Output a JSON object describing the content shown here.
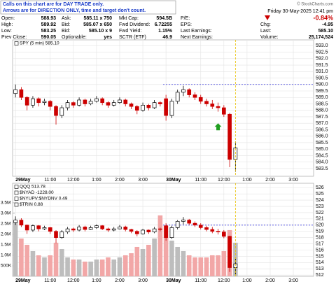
{
  "header": {
    "notice": [
      "Calls on this chart are for DAY TRADE only.",
      "Arrows are for DIRECTION ONLY, time and target don't count."
    ],
    "copyright": "© StockCharts.com",
    "date": "Friday  30-May-2025  12:41 pm",
    "columns": [
      [
        {
          "label": "Open:",
          "value": "588.93"
        },
        {
          "label": "High:",
          "value": "589.92"
        },
        {
          "label": "Low:",
          "value": "583.25"
        },
        {
          "label": "Prev Close:",
          "value": "590.05"
        }
      ],
      [
        {
          "label": "Ask:",
          "value": "585.11 x 750"
        },
        {
          "label": "Bid:",
          "value": "585.07 x 650"
        },
        {
          "label": "Bid:",
          "value": "585.10 x 9"
        },
        {
          "label": "Optionable:",
          "value": "yes"
        }
      ],
      [
        {
          "label": "Mkt Cap:",
          "value": "594.5B"
        },
        {
          "label": "Fwd Dividend:",
          "value": "6.72255"
        },
        {
          "label": "Fwd Yield:",
          "value": "1.15%"
        },
        {
          "label": "SCTR (ETF)",
          "value": "46.9"
        }
      ],
      [
        {
          "label": "P/E:"
        },
        {
          "label": "EPS:"
        },
        {
          "label": "Last Earnings:"
        },
        {
          "label": "Next Earnings:"
        }
      ]
    ],
    "quote": [
      {
        "value": "-0.84%"
      },
      {
        "label": "Chg:",
        "value": "-4.95"
      },
      {
        "label": "Last:",
        "value": "585.10"
      },
      {
        "label": "Volume:",
        "value": "25,174,524"
      }
    ]
  },
  "chart_data": [
    {
      "type": "candlestick",
      "legend": [
        "SPY (5 min) 585.10"
      ],
      "categories": [
        "29May",
        null,
        null,
        null,
        null,
        null,
        "11:00",
        null,
        null,
        null,
        "12:00",
        null,
        null,
        null,
        "1:00",
        null,
        null,
        null,
        "2:00",
        null,
        null,
        null,
        "3:00",
        null,
        null,
        null,
        "30May",
        null,
        null,
        null,
        null,
        null,
        "11:00",
        null,
        null,
        null,
        "12:00",
        null,
        null,
        null,
        "1:00",
        null,
        null,
        null,
        "2:00",
        null,
        null,
        null,
        "3:00",
        null,
        null,
        null
      ],
      "open": [
        589.3,
        589.6,
        589.0,
        588.4,
        588.9,
        588.6,
        588.7,
        588.3,
        587.6,
        588.2,
        588.6,
        588.4,
        588.8,
        588.5,
        588.7,
        588.9,
        588.6,
        588.4,
        588.6,
        588.8,
        588.5,
        588.3,
        588.0,
        588.4,
        588.2,
        588.6,
        588.9,
        587.6,
        588.7,
        589.4,
        589.6,
        589.2,
        589.0,
        588.7,
        588.5,
        588.3,
        588.2,
        587.7,
        584.2,
        null,
        null,
        null,
        null,
        null,
        null,
        null,
        null,
        null,
        null,
        null,
        null,
        null
      ],
      "high": [
        590.0,
        589.8,
        589.1,
        589.1,
        589.0,
        588.9,
        588.8,
        588.4,
        588.4,
        588.8,
        588.7,
        589.0,
        588.9,
        588.9,
        589.1,
        589.0,
        588.7,
        588.8,
        589.0,
        588.9,
        588.6,
        588.4,
        588.6,
        588.5,
        588.8,
        588.7,
        589.2,
        588.9,
        589.6,
        589.9,
        589.7,
        589.4,
        589.2,
        588.9,
        588.8,
        588.6,
        588.4,
        587.8,
        585.6,
        null,
        null,
        null,
        null,
        null,
        null,
        null,
        null,
        null,
        null,
        null,
        null,
        null
      ],
      "low": [
        589.0,
        588.8,
        588.0,
        588.2,
        588.3,
        588.4,
        588.0,
        586.9,
        587.4,
        588.0,
        588.2,
        588.3,
        588.3,
        588.4,
        588.6,
        588.4,
        588.2,
        588.3,
        588.5,
        588.3,
        588.1,
        587.7,
        587.9,
        588.0,
        588.1,
        588.3,
        587.2,
        587.4,
        588.5,
        589.1,
        589.0,
        588.8,
        588.5,
        588.3,
        588.1,
        587.9,
        587.5,
        583.6,
        583.25,
        null,
        null,
        null,
        null,
        null,
        null,
        null,
        null,
        null,
        null,
        null,
        null,
        null
      ],
      "close": [
        589.6,
        589.0,
        588.4,
        588.9,
        588.6,
        588.7,
        588.3,
        587.6,
        588.2,
        588.6,
        588.4,
        588.8,
        588.5,
        588.7,
        588.9,
        588.6,
        588.4,
        588.6,
        588.8,
        588.5,
        588.3,
        588.0,
        588.4,
        588.2,
        588.6,
        588.5,
        587.6,
        588.7,
        589.4,
        589.6,
        589.2,
        589.0,
        588.7,
        588.5,
        588.3,
        588.2,
        587.7,
        584.2,
        585.1,
        null,
        null,
        null,
        null,
        null,
        null,
        null,
        null,
        null,
        null,
        null,
        null,
        null
      ],
      "up_color": "#000000",
      "down_color": "#cc0000",
      "ylim": [
        582.9,
        593.45
      ],
      "yticks": [
        583.5,
        {
          "value": 584,
          "label": "584.0"
        },
        584.5,
        {
          "value": 585,
          "label": "585.0"
        },
        585.5,
        {
          "value": 586,
          "label": "586.0"
        },
        586.5,
        {
          "value": 587,
          "label": "587.0"
        },
        587.5,
        {
          "value": 588,
          "label": "588.0"
        },
        588.5,
        {
          "value": 589,
          "label": "589.0"
        },
        589.5,
        {
          "value": 590,
          "label": "590.0"
        },
        590.5,
        {
          "value": 591,
          "label": "591.0"
        },
        591.5,
        {
          "value": 592,
          "label": "592.0"
        },
        592.5,
        {
          "value": 593,
          "label": "593.0"
        }
      ],
      "reference_line": 590.0,
      "arrow": {
        "bar": 35,
        "value": 587.0,
        "color": "#1f9e1f"
      },
      "grid": true
    },
    {
      "type": "candlestick",
      "legend": [
        "QQQ 513.78",
        "$NYAD -1228.00",
        "$NYUPV:$NYDNV 0.49",
        "$TRIN 0.88"
      ],
      "categories": [
        "29May",
        null,
        null,
        null,
        null,
        null,
        "11:00",
        null,
        null,
        null,
        "12:00",
        null,
        null,
        null,
        "1:00",
        null,
        null,
        null,
        "2:00",
        null,
        null,
        null,
        "3:00",
        null,
        null,
        null,
        "30May",
        null,
        null,
        null,
        null,
        null,
        "11:00",
        null,
        null,
        null,
        "12:00",
        null,
        null,
        null,
        "1:00",
        null,
        null,
        null,
        "2:00",
        null,
        null,
        null,
        "3:00",
        null,
        null,
        null
      ],
      "open": [
        520.4,
        520.8,
        520.0,
        519.2,
        519.9,
        519.4,
        519.6,
        519.0,
        518.0,
        518.9,
        519.4,
        519.2,
        519.7,
        519.3,
        519.6,
        519.9,
        519.4,
        519.2,
        519.4,
        519.7,
        519.3,
        519.0,
        518.6,
        519.2,
        518.9,
        519.4,
        519.9,
        518.0,
        519.6,
        520.6,
        520.8,
        520.3,
        520.0,
        519.6,
        519.3,
        519.0,
        518.9,
        518.2,
        513.2,
        null,
        null,
        null,
        null,
        null,
        null,
        null,
        null,
        null,
        null,
        null,
        null,
        null
      ],
      "high": [
        521.4,
        521.1,
        520.1,
        520.1,
        520.0,
        519.9,
        519.7,
        519.2,
        519.2,
        519.7,
        519.6,
        520.0,
        519.9,
        519.9,
        520.1,
        520.0,
        519.6,
        519.7,
        520.0,
        519.9,
        519.4,
        519.2,
        519.4,
        519.3,
        519.7,
        519.6,
        520.3,
        519.9,
        520.8,
        521.3,
        521.0,
        520.6,
        520.3,
        519.9,
        519.7,
        519.4,
        519.2,
        518.3,
        514.6,
        null,
        null,
        null,
        null,
        null,
        null,
        null,
        null,
        null,
        null,
        null,
        null,
        null
      ],
      "low": [
        520.0,
        519.7,
        518.6,
        518.9,
        519.0,
        519.2,
        518.6,
        517.1,
        517.8,
        518.6,
        518.9,
        519.0,
        519.0,
        519.2,
        519.4,
        519.2,
        518.9,
        519.0,
        519.3,
        519.0,
        518.7,
        518.2,
        518.5,
        518.6,
        518.7,
        519.0,
        517.5,
        517.8,
        519.3,
        520.1,
        520.0,
        519.7,
        519.3,
        519.0,
        518.7,
        518.5,
        517.9,
        512.5,
        512.1,
        null,
        null,
        null,
        null,
        null,
        null,
        null,
        null,
        null,
        null,
        null,
        null,
        null
      ],
      "close": [
        520.8,
        520.0,
        519.2,
        519.9,
        519.4,
        519.6,
        519.0,
        518.0,
        518.9,
        519.4,
        519.2,
        519.7,
        519.3,
        519.6,
        519.9,
        519.4,
        519.2,
        519.4,
        519.7,
        519.3,
        519.0,
        518.6,
        519.2,
        518.9,
        519.4,
        519.3,
        518.0,
        519.6,
        520.6,
        520.8,
        520.3,
        520.0,
        519.6,
        519.3,
        519.0,
        518.9,
        518.2,
        513.2,
        513.8,
        null,
        null,
        null,
        null,
        null,
        null,
        null,
        null,
        null,
        null,
        null,
        null,
        null
      ],
      "volume": [
        2600000,
        1800000,
        1500000,
        1200000,
        1000000,
        900000,
        1000000,
        1600000,
        1300000,
        900000,
        800000,
        800000,
        700000,
        700000,
        800000,
        800000,
        900000,
        800000,
        900000,
        1000000,
        1100000,
        1400000,
        1300000,
        1500000,
        1800000,
        2900000,
        2400000,
        1700000,
        1400000,
        1200000,
        1000000,
        900000,
        900000,
        900000,
        1000000,
        1000000,
        1200000,
        2200000,
        1600000,
        null,
        null,
        null,
        null,
        null,
        null,
        null,
        null,
        null,
        null,
        null,
        null,
        null
      ],
      "up_color": "#000000",
      "down_color": "#cc0000",
      "volume_up_color": "#bdbdbd",
      "volume_down_color": "#f2a7a7",
      "ylim": [
        511.8,
        526.7
      ],
      "yticks": [
        512,
        513,
        514,
        515,
        516,
        517,
        518,
        519,
        520,
        521,
        522,
        523,
        524,
        525,
        526
      ],
      "y2lim": [
        0,
        4430000
      ],
      "y2ticks": [
        {
          "value": 500000,
          "label": "500K"
        },
        {
          "value": 1000000,
          "label": "1.0M"
        },
        {
          "value": 1500000,
          "label": "1.5M"
        },
        {
          "value": 2000000,
          "label": "2.0M"
        },
        {
          "value": 2500000,
          "label": "2.5M"
        },
        {
          "value": 3000000,
          "label": "3.0M"
        },
        {
          "value": 3500000,
          "label": "3.5M"
        }
      ],
      "reference_line": 520,
      "grid": true
    }
  ]
}
